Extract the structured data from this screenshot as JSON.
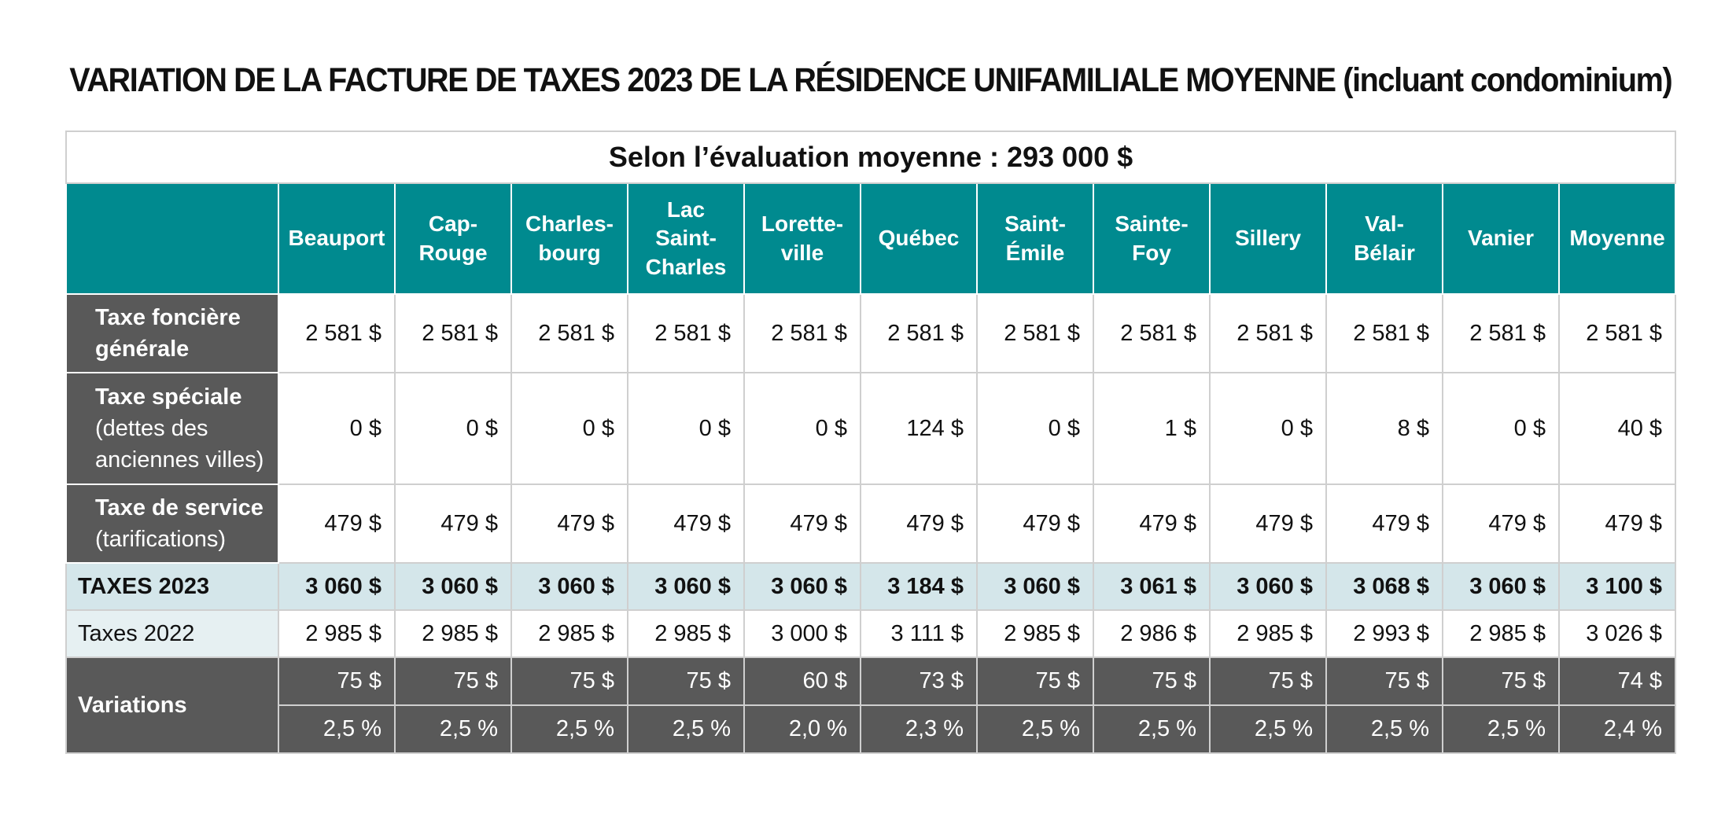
{
  "title": "VARIATION DE LA FACTURE DE TAXES 2023 DE LA RÉSIDENCE UNIFAMILIALE MOYENNE (incluant condominium)",
  "subtitle": "Selon l’évaluation moyenne : 293 000 $",
  "columns": [
    {
      "l1": "Beauport",
      "l2": "",
      "l3": ""
    },
    {
      "l1": "Cap-",
      "l2": "Rouge",
      "l3": ""
    },
    {
      "l1": "Charles-",
      "l2": "bourg",
      "l3": ""
    },
    {
      "l1": "Lac",
      "l2": "Saint-",
      "l3": "Charles"
    },
    {
      "l1": "Lorette-",
      "l2": "ville",
      "l3": ""
    },
    {
      "l1": "Québec",
      "l2": "",
      "l3": ""
    },
    {
      "l1": "Saint-",
      "l2": "Émile",
      "l3": ""
    },
    {
      "l1": "Sainte-",
      "l2": "Foy",
      "l3": ""
    },
    {
      "l1": "Sillery",
      "l2": "",
      "l3": ""
    },
    {
      "l1": "Val-",
      "l2": "Bélair",
      "l3": ""
    },
    {
      "l1": "Vanier",
      "l2": "",
      "l3": ""
    },
    {
      "l1": "Moyenne",
      "l2": "",
      "l3": ""
    }
  ],
  "rows": {
    "fonciere": {
      "label1": "Taxe foncière",
      "label2": "générale",
      "label3": "",
      "values": [
        "2 581 $",
        "2 581 $",
        "2 581 $",
        "2 581 $",
        "2 581 $",
        "2 581 $",
        "2 581 $",
        "2 581 $",
        "2 581 $",
        "2 581 $",
        "2 581 $",
        "2 581 $"
      ]
    },
    "speciale": {
      "label1": "Taxe spéciale",
      "label2": "(dettes des",
      "label3": "anciennes villes)",
      "values": [
        "0 $",
        "0 $",
        "0 $",
        "0 $",
        "0 $",
        "124 $",
        "0 $",
        "1 $",
        "0 $",
        "8 $",
        "0 $",
        "40 $"
      ]
    },
    "service": {
      "label1": "Taxe de service",
      "label2": "(tarifications)",
      "label3": "",
      "values": [
        "479 $",
        "479 $",
        "479 $",
        "479 $",
        "479 $",
        "479 $",
        "479 $",
        "479 $",
        "479 $",
        "479 $",
        "479 $",
        "479 $"
      ]
    },
    "taxes2023": {
      "label": "TAXES 2023",
      "values": [
        "3 060 $",
        "3 060 $",
        "3 060 $",
        "3 060 $",
        "3 060 $",
        "3 184 $",
        "3 060 $",
        "3 061 $",
        "3 060 $",
        "3 068 $",
        "3 060 $",
        "3 100 $"
      ]
    },
    "taxes2022": {
      "label": "Taxes 2022",
      "values": [
        "2 985 $",
        "2 985 $",
        "2 985 $",
        "2 985 $",
        "3 000 $",
        "3 111 $",
        "2 985 $",
        "2 986 $",
        "2 985 $",
        "2 993 $",
        "2 985 $",
        "3 026 $"
      ]
    },
    "variations": {
      "label": "Variations",
      "dollars": [
        "75 $",
        "75 $",
        "75 $",
        "75 $",
        "60 $",
        "73 $",
        "75 $",
        "75 $",
        "75 $",
        "75 $",
        "75 $",
        "74 $"
      ],
      "percent": [
        "2,5 %",
        "2,5 %",
        "2,5 %",
        "2,5 %",
        "2,0 %",
        "2,3 %",
        "2,5 %",
        "2,5 %",
        "2,5 %",
        "2,5 %",
        "2,5 %",
        "2,4 %"
      ]
    }
  },
  "colors": {
    "header_teal": "#008a8f",
    "label_gray": "#595959",
    "total_row": "#d4e6ea",
    "prev_label": "#e6f0f2"
  }
}
